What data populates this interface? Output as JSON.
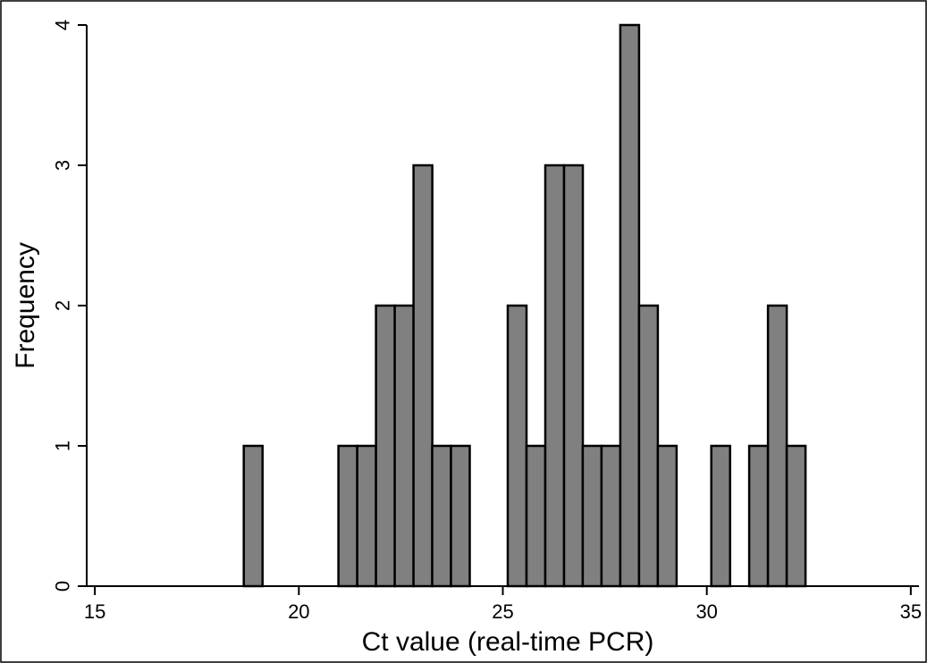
{
  "chart_data": {
    "type": "bar",
    "xlabel": "Ct value (real-time PCR)",
    "ylabel": "Frequency",
    "xlim": [
      14.8,
      35.2
    ],
    "ylim": [
      0,
      4
    ],
    "xticks": [
      15,
      20,
      25,
      30,
      35
    ],
    "yticks": [
      0,
      1,
      2,
      3,
      4
    ],
    "bin_width": 0.46,
    "bar_color": "#808080",
    "edge_color": "#000000",
    "grid": false,
    "bins": [
      {
        "start": 18.65,
        "count": 1
      },
      {
        "start": 20.97,
        "count": 1
      },
      {
        "start": 21.43,
        "count": 1
      },
      {
        "start": 21.89,
        "count": 2
      },
      {
        "start": 22.35,
        "count": 2
      },
      {
        "start": 22.81,
        "count": 3
      },
      {
        "start": 23.27,
        "count": 1
      },
      {
        "start": 23.73,
        "count": 1
      },
      {
        "start": 25.12,
        "count": 2
      },
      {
        "start": 25.58,
        "count": 1
      },
      {
        "start": 26.04,
        "count": 3
      },
      {
        "start": 26.5,
        "count": 3
      },
      {
        "start": 26.96,
        "count": 1
      },
      {
        "start": 27.42,
        "count": 1
      },
      {
        "start": 27.88,
        "count": 4
      },
      {
        "start": 28.34,
        "count": 2
      },
      {
        "start": 28.8,
        "count": 1
      },
      {
        "start": 30.11,
        "count": 1
      },
      {
        "start": 31.04,
        "count": 1
      },
      {
        "start": 31.5,
        "count": 2
      },
      {
        "start": 31.96,
        "count": 1
      }
    ]
  }
}
